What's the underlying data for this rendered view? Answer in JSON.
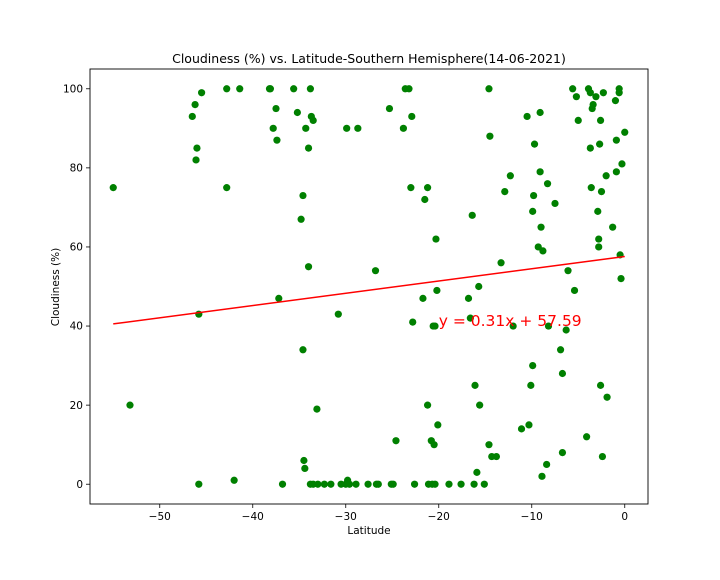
{
  "chart_data": {
    "type": "scatter",
    "title": "Cloudiness (%) vs. Latitude-Southern Hemisphere(14-06-2021)",
    "xlabel": "Latitude",
    "ylabel": "Cloudiness (%)",
    "xlim": [
      -57.5,
      2.5
    ],
    "ylim": [
      -5,
      105
    ],
    "xticks": [
      -50,
      -40,
      -30,
      -20,
      -10,
      0
    ],
    "xtick_labels": [
      "−50",
      "−40",
      "−30",
      "−20",
      "−10",
      "0"
    ],
    "yticks": [
      0,
      20,
      40,
      60,
      80,
      100
    ],
    "ytick_labels": [
      "0",
      "20",
      "40",
      "60",
      "80",
      "100"
    ],
    "grid": false,
    "marker_color": "#008000",
    "line_color": "#ff0000",
    "regression": {
      "slope": 0.31,
      "intercept": 57.59,
      "x_range": [
        -55,
        0
      ],
      "equation_label": "y = 0.31x + 57.59",
      "label_at": [
        -20,
        40
      ]
    },
    "points": [
      [
        -55,
        75
      ],
      [
        -53.2,
        20
      ],
      [
        -46.5,
        93
      ],
      [
        -46.2,
        96
      ],
      [
        -46,
        85
      ],
      [
        -46.1,
        82
      ],
      [
        -45.5,
        99
      ],
      [
        -45.8,
        43
      ],
      [
        -45.8,
        0
      ],
      [
        -42.8,
        100
      ],
      [
        -42.8,
        75
      ],
      [
        -42,
        1
      ],
      [
        -41.4,
        100
      ],
      [
        -38.2,
        100
      ],
      [
        -38.1,
        100
      ],
      [
        -37.8,
        90
      ],
      [
        -37.5,
        95
      ],
      [
        -37.4,
        87
      ],
      [
        -37.2,
        47
      ],
      [
        -36.8,
        0
      ],
      [
        -35.6,
        100
      ],
      [
        -35.2,
        94
      ],
      [
        -34.8,
        67
      ],
      [
        -34.6,
        73
      ],
      [
        -34.6,
        34
      ],
      [
        -34.5,
        6
      ],
      [
        -34.4,
        4
      ],
      [
        -34.3,
        90
      ],
      [
        -34,
        55
      ],
      [
        -34,
        85
      ],
      [
        -33.8,
        100
      ],
      [
        -33.7,
        93
      ],
      [
        -33.5,
        92
      ],
      [
        -33.8,
        0
      ],
      [
        -33.5,
        0
      ],
      [
        -33.1,
        19
      ],
      [
        -33,
        0
      ],
      [
        -32.3,
        0
      ],
      [
        -31.6,
        0
      ],
      [
        -30.8,
        43
      ],
      [
        -30.5,
        0
      ],
      [
        -30,
        0
      ],
      [
        -29.9,
        90
      ],
      [
        -29.8,
        1
      ],
      [
        -29.6,
        0
      ],
      [
        -28.7,
        90
      ],
      [
        -28.9,
        0
      ],
      [
        -27.6,
        0
      ],
      [
        -26.8,
        54
      ],
      [
        -26.7,
        0
      ],
      [
        -26.5,
        0
      ],
      [
        -25.3,
        95
      ],
      [
        -25.1,
        0
      ],
      [
        -24.9,
        0
      ],
      [
        -24.6,
        11
      ],
      [
        -23.8,
        90
      ],
      [
        -23.6,
        100
      ],
      [
        -23.2,
        100
      ],
      [
        -23,
        75
      ],
      [
        -22.9,
        93
      ],
      [
        -22.8,
        41
      ],
      [
        -22.6,
        0
      ],
      [
        -21.7,
        47
      ],
      [
        -21.5,
        72
      ],
      [
        -21.2,
        75
      ],
      [
        -21.2,
        20
      ],
      [
        -21.1,
        0
      ],
      [
        -20.8,
        11
      ],
      [
        -20.6,
        40
      ],
      [
        -20.5,
        10
      ],
      [
        -20.4,
        40
      ],
      [
        -20.3,
        62
      ],
      [
        -20.2,
        49
      ],
      [
        -20.1,
        15
      ],
      [
        -20.4,
        0
      ],
      [
        -20.7,
        0
      ],
      [
        -18.9,
        0
      ],
      [
        -17.6,
        0
      ],
      [
        -16.8,
        47
      ],
      [
        -16.6,
        42
      ],
      [
        -16.4,
        68
      ],
      [
        -16.2,
        0
      ],
      [
        -16.1,
        25
      ],
      [
        -15.9,
        3
      ],
      [
        -15.7,
        50
      ],
      [
        -15.6,
        20
      ],
      [
        -15.1,
        0
      ],
      [
        -14.6,
        100
      ],
      [
        -14.5,
        88
      ],
      [
        -14.6,
        10
      ],
      [
        -14.3,
        7
      ],
      [
        -13.8,
        7
      ],
      [
        -13.3,
        56
      ],
      [
        -12.9,
        74
      ],
      [
        -12.3,
        78
      ],
      [
        -12,
        40
      ],
      [
        -11.1,
        14
      ],
      [
        -10.5,
        93
      ],
      [
        -10.3,
        15
      ],
      [
        -10.1,
        25
      ],
      [
        -9.9,
        69
      ],
      [
        -9.9,
        30
      ],
      [
        -9.8,
        73
      ],
      [
        -9.7,
        86
      ],
      [
        -9.3,
        60
      ],
      [
        -9.1,
        94
      ],
      [
        -9.1,
        79
      ],
      [
        -9,
        65
      ],
      [
        -8.8,
        59
      ],
      [
        -8.9,
        2
      ],
      [
        -8.4,
        5
      ],
      [
        -8.3,
        76
      ],
      [
        -8.2,
        40
      ],
      [
        -7.5,
        71
      ],
      [
        -6.9,
        34
      ],
      [
        -6.7,
        28
      ],
      [
        -6.7,
        8
      ],
      [
        -6.3,
        39
      ],
      [
        -6.1,
        54
      ],
      [
        -5.6,
        100
      ],
      [
        -5.4,
        49
      ],
      [
        -5.2,
        98
      ],
      [
        -5,
        92
      ],
      [
        -4.1,
        12
      ],
      [
        -3.9,
        100
      ],
      [
        -3.7,
        99
      ],
      [
        -3.7,
        85
      ],
      [
        -3.6,
        75
      ],
      [
        -3.5,
        95
      ],
      [
        -3.4,
        96
      ],
      [
        -3.1,
        98
      ],
      [
        -2.9,
        69
      ],
      [
        -2.8,
        62
      ],
      [
        -2.8,
        60
      ],
      [
        -2.7,
        86
      ],
      [
        -2.6,
        92
      ],
      [
        -2.6,
        25
      ],
      [
        -2.5,
        74
      ],
      [
        -2.4,
        7
      ],
      [
        -2.3,
        99
      ],
      [
        -2,
        78
      ],
      [
        -1.9,
        22
      ],
      [
        -1.3,
        65
      ],
      [
        -1,
        97
      ],
      [
        -0.9,
        87
      ],
      [
        -0.9,
        79
      ],
      [
        -0.6,
        100
      ],
      [
        -0.6,
        99
      ],
      [
        -0.5,
        58
      ],
      [
        -0.4,
        52
      ],
      [
        -0.3,
        81
      ],
      [
        0,
        89
      ]
    ]
  }
}
